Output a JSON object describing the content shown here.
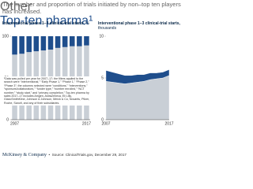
{
  "title": "The number and proportion of trials initiated by non–top ten players has increased.",
  "chart_data": [
    {
      "type": "bar",
      "stacked": true,
      "title": "Interventional phase 1–3 clinical-trial starts,",
      "unit": "%",
      "categories": [
        "2007",
        null,
        null,
        null,
        null,
        null,
        null,
        null,
        null,
        null,
        "2017"
      ],
      "series": [
        {
          "color": "#c9cfd6",
          "values": [
            78,
            79,
            81,
            82,
            83,
            84,
            86,
            87,
            88,
            88,
            89
          ]
        },
        {
          "color": "#1f4e8c",
          "values": [
            22,
            21,
            19,
            18,
            17,
            16,
            14,
            13,
            12,
            12,
            11
          ]
        }
      ],
      "ylim": [
        0,
        100
      ],
      "yticks": [
        0,
        50,
        100
      ]
    },
    {
      "type": "area",
      "stacked": true,
      "title": "Interventional phase 1–3 clinical-trial starts,",
      "unit": "thousands",
      "categories": [
        "2007",
        null,
        null,
        null,
        null,
        null,
        null,
        null,
        null,
        null,
        "2017"
      ],
      "series": [
        {
          "name": "Other",
          "color": "#c9cfd6",
          "values": [
            4.6,
            4.5,
            4.4,
            4.3,
            4.4,
            4.5,
            4.6,
            4.8,
            4.9,
            5.0,
            5.3
          ]
        },
        {
          "name": "Top-ten pharma¹",
          "color": "#1f4e8c",
          "values": [
            1.3,
            1.2,
            1.1,
            1.0,
            0.9,
            0.9,
            0.8,
            0.8,
            0.7,
            0.7,
            0.7
          ]
        }
      ],
      "ylim": [
        0,
        10
      ],
      "yticks": [
        0,
        5,
        10
      ]
    }
  ],
  "notes": "¹Data was pulled per year for 2007–17; the filters applied to the search were “Interventional,” “Early Phase 1,” “Phase 1,” “Phase 2,” “Phase 3”; the columns selected were “conditions,” “interventions,” “sponsors/collaborators,” “funder type,” “number enrolled,” “NCT number,” “study start,” and “primary completion.” Top-ten pharma by sales 2017–17 includes Amgen, AstraZeneca, Eli Lilly, GlaxoSmithKline, Johnson & Johnson, Merck & Co, Novartis, Pfizer, Roche, Sanofi, and any of their subsidiaries.",
  "brand": "McKinsey & Company",
  "source": "Source: ClinicalTrials.gov, December 29, 2017"
}
